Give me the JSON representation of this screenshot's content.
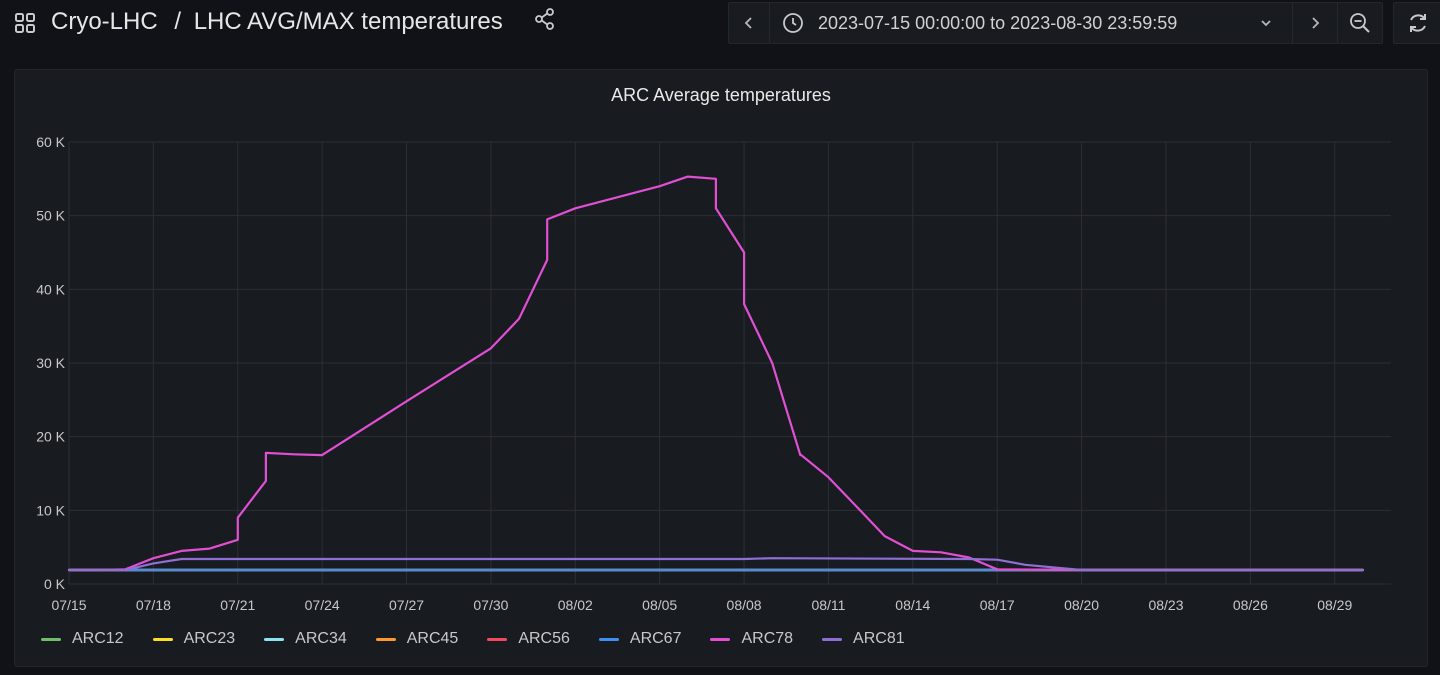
{
  "header": {
    "folder": "Cryo-LHC",
    "separator": "/",
    "title": "LHC AVG/MAX temperatures",
    "time_range": "2023-07-15 00:00:00 to 2023-08-30 23:59:59",
    "icons": [
      "apps-icon",
      "share-icon",
      "chevron-left-icon",
      "clock-icon",
      "chevron-down-icon",
      "chevron-right-icon",
      "zoom-out-icon",
      "refresh-icon"
    ]
  },
  "panel": {
    "title": "ARC Average temperatures"
  },
  "colors": {
    "ARC12": "#73bf69",
    "ARC23": "#fade2a",
    "ARC34": "#8ae5f1",
    "ARC45": "#ff9830",
    "ARC56": "#f2495c",
    "ARC67": "#3f8ff5",
    "ARC78": "#e14fd4",
    "ARC81": "#8f6fd6"
  },
  "chart_data": {
    "type": "line",
    "title": "ARC Average temperatures",
    "x_start": "2023-07-15",
    "x_end": "2023-08-31",
    "x_ticks": [
      "07/15",
      "07/18",
      "07/21",
      "07/24",
      "07/27",
      "07/30",
      "08/02",
      "08/05",
      "08/08",
      "08/11",
      "08/14",
      "08/17",
      "08/20",
      "08/23",
      "08/26",
      "08/29"
    ],
    "y_ticks": [
      "0 K",
      "10 K",
      "20 K",
      "30 K",
      "40 K",
      "50 K",
      "60 K"
    ],
    "ylim": [
      0,
      60000
    ],
    "y_unit": "K",
    "grid": true,
    "legend_position": "bottom-left",
    "series": [
      {
        "name": "ARC12",
        "x": [
          "2023-07-15",
          "2023-08-30"
        ],
        "y": [
          1900,
          1900
        ]
      },
      {
        "name": "ARC23",
        "x": [
          "2023-07-15",
          "2023-08-30"
        ],
        "y": [
          1900,
          1900
        ]
      },
      {
        "name": "ARC34",
        "x": [
          "2023-07-15",
          "2023-08-30"
        ],
        "y": [
          1900,
          1900
        ]
      },
      {
        "name": "ARC45",
        "x": [
          "2023-07-15",
          "2023-08-30"
        ],
        "y": [
          1900,
          1900
        ]
      },
      {
        "name": "ARC56",
        "x": [
          "2023-07-15",
          "2023-08-30"
        ],
        "y": [
          1900,
          1900
        ]
      },
      {
        "name": "ARC67",
        "x": [
          "2023-07-15",
          "2023-08-16",
          "2023-08-17",
          "2023-08-30"
        ],
        "y": [
          1900,
          1900,
          1900,
          1900
        ]
      },
      {
        "name": "ARC78",
        "x": [
          "2023-07-15",
          "2023-07-16",
          "2023-07-17",
          "2023-07-18",
          "2023-07-19",
          "2023-07-20",
          "2023-07-21",
          "2023-07-21",
          "2023-07-22",
          "2023-07-22",
          "2023-07-23",
          "2023-07-24",
          "2023-07-27",
          "2023-07-30",
          "2023-07-31",
          "2023-08-01",
          "2023-08-01",
          "2023-08-02",
          "2023-08-05",
          "2023-08-06",
          "2023-08-07",
          "2023-08-07",
          "2023-08-08",
          "2023-08-08",
          "2023-08-09",
          "2023-08-10",
          "2023-08-10",
          "2023-08-11",
          "2023-08-12",
          "2023-08-13",
          "2023-08-14",
          "2023-08-15",
          "2023-08-16",
          "2023-08-17",
          "2023-08-20",
          "2023-08-30"
        ],
        "y": [
          1900,
          1900,
          2000,
          3500,
          4500,
          4800,
          6000,
          9000,
          14000,
          17800,
          17600,
          17500,
          24800,
          32000,
          36000,
          44000,
          49500,
          51000,
          54000,
          55300,
          55000,
          51000,
          45000,
          38000,
          30000,
          17500,
          17600,
          14500,
          10500,
          6500,
          4500,
          4300,
          3600,
          2000,
          1900,
          1900
        ]
      },
      {
        "name": "ARC81",
        "x": [
          "2023-07-15",
          "2023-07-17",
          "2023-07-18",
          "2023-07-19",
          "2023-08-08",
          "2023-08-09",
          "2023-08-16",
          "2023-08-17",
          "2023-08-18",
          "2023-08-20",
          "2023-08-30"
        ],
        "y": [
          1900,
          1900,
          2800,
          3400,
          3400,
          3500,
          3400,
          3300,
          2600,
          1900,
          1900
        ]
      }
    ]
  }
}
